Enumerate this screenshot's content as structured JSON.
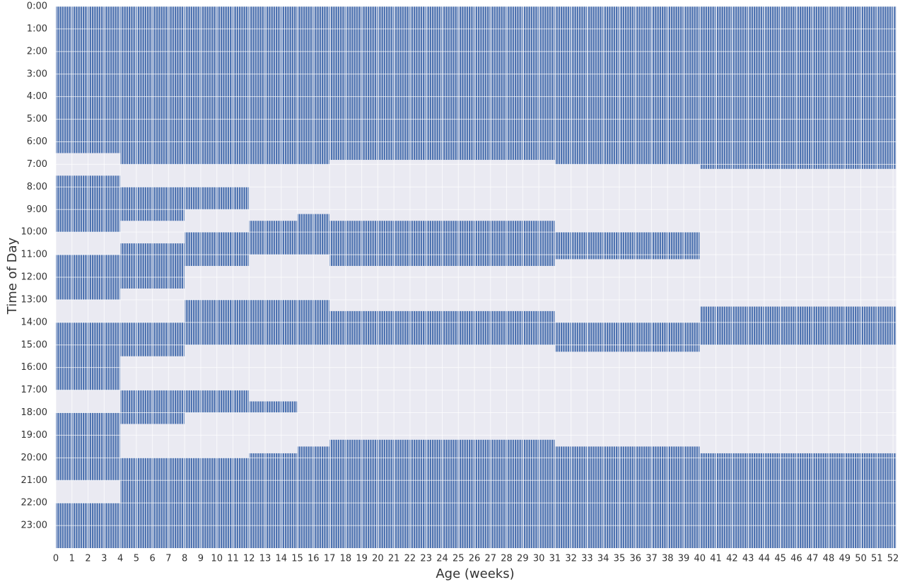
{
  "chart_data": {
    "type": "sleep_timeline",
    "x_label": "Age (weeks)",
    "y_label": "Time of Day",
    "color": "#4c72b0",
    "background": "#eaeaf2",
    "grid": true,
    "y_inverted": true,
    "xlim": [
      0,
      52.2
    ],
    "xticks": [
      0,
      1,
      2,
      3,
      4,
      5,
      6,
      7,
      8,
      9,
      10,
      11,
      12,
      13,
      14,
      15,
      16,
      17,
      18,
      19,
      20,
      21,
      22,
      23,
      24,
      25,
      26,
      27,
      28,
      29,
      30,
      31,
      32,
      33,
      34,
      35,
      36,
      37,
      38,
      39,
      40,
      41,
      42,
      43,
      44,
      45,
      46,
      47,
      48,
      49,
      50,
      51,
      52
    ],
    "ylim": [
      0,
      24
    ],
    "yticks": [
      {
        "value": 0,
        "label": "0:00"
      },
      {
        "value": 1,
        "label": "1:00"
      },
      {
        "value": 2,
        "label": "2:00"
      },
      {
        "value": 3,
        "label": "3:00"
      },
      {
        "value": 4,
        "label": "4:00"
      },
      {
        "value": 5,
        "label": "5:00"
      },
      {
        "value": 6,
        "label": "6:00"
      },
      {
        "value": 7,
        "label": "7:00"
      },
      {
        "value": 8,
        "label": "8:00"
      },
      {
        "value": 9,
        "label": "9:00"
      },
      {
        "value": 10,
        "label": "10:00"
      },
      {
        "value": 11,
        "label": "11:00"
      },
      {
        "value": 12,
        "label": "12:00"
      },
      {
        "value": 13,
        "label": "13:00"
      },
      {
        "value": 14,
        "label": "14:00"
      },
      {
        "value": 15,
        "label": "15:00"
      },
      {
        "value": 16,
        "label": "16:00"
      },
      {
        "value": 17,
        "label": "17:00"
      },
      {
        "value": 18,
        "label": "18:00"
      },
      {
        "value": 19,
        "label": "19:00"
      },
      {
        "value": 20,
        "label": "20:00"
      },
      {
        "value": 21,
        "label": "21:00"
      },
      {
        "value": 22,
        "label": "22:00"
      },
      {
        "value": 23,
        "label": "23:00"
      }
    ],
    "periods": [
      {
        "weeks": [
          0,
          4
        ],
        "sleep": [
          [
            0,
            6.5
          ],
          [
            7.5,
            10
          ],
          [
            11,
            13
          ],
          [
            14,
            17
          ],
          [
            18,
            21
          ],
          [
            22,
            24
          ]
        ]
      },
      {
        "weeks": [
          4,
          8
        ],
        "sleep": [
          [
            0,
            7
          ],
          [
            8,
            9.5
          ],
          [
            10.5,
            12.5
          ],
          [
            14,
            15.5
          ],
          [
            17,
            18.5
          ],
          [
            20,
            24
          ]
        ]
      },
      {
        "weeks": [
          8,
          12
        ],
        "sleep": [
          [
            0,
            7
          ],
          [
            8,
            9
          ],
          [
            10,
            11.5
          ],
          [
            13,
            15
          ],
          [
            17,
            18
          ],
          [
            20,
            24
          ]
        ]
      },
      {
        "weeks": [
          12,
          15
        ],
        "sleep": [
          [
            0,
            7
          ],
          [
            9.5,
            11
          ],
          [
            13,
            15
          ],
          [
            17.5,
            18
          ],
          [
            19.8,
            24
          ]
        ]
      },
      {
        "weeks": [
          15,
          17
        ],
        "sleep": [
          [
            0,
            7
          ],
          [
            9.2,
            11
          ],
          [
            13,
            15
          ],
          [
            19.5,
            24
          ]
        ]
      },
      {
        "weeks": [
          17,
          31
        ],
        "sleep": [
          [
            0,
            6.8
          ],
          [
            9.5,
            11.5
          ],
          [
            13.5,
            15
          ],
          [
            19.2,
            24
          ]
        ]
      },
      {
        "weeks": [
          31,
          40
        ],
        "sleep": [
          [
            0,
            7
          ],
          [
            10,
            11.2
          ],
          [
            14,
            15.3
          ],
          [
            19.5,
            24
          ]
        ]
      },
      {
        "weeks": [
          40,
          52.2
        ],
        "sleep": [
          [
            0,
            7.2
          ],
          [
            13.3,
            15
          ],
          [
            19.8,
            24
          ]
        ]
      }
    ]
  }
}
